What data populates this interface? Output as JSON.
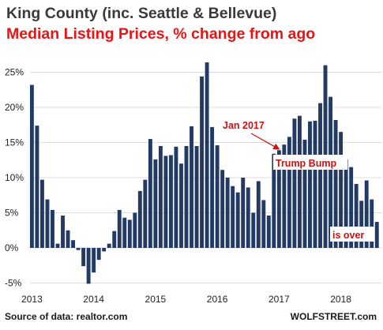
{
  "header": {
    "title": "King County (inc. Seattle & Bellevue)",
    "subtitle": "Median Listing Prices, % change from ago"
  },
  "footer": {
    "source": "Source of data: realtor.com",
    "brand": "WOLFSTREET.com"
  },
  "colors": {
    "bar": "#233a66",
    "grid": "#dcdcdc",
    "annotation": "#cc1111",
    "subtitle": "#ee1111"
  },
  "chart_data": {
    "type": "bar",
    "title": "",
    "xlabel": "",
    "ylabel": "",
    "ylim": [
      -6,
      28
    ],
    "y_ticks": [
      "-5%",
      "0%",
      "5%",
      "10%",
      "15%",
      "20%",
      "25%"
    ],
    "x_ticks": [
      "2013",
      "2014",
      "2015",
      "2016",
      "2017",
      "2018"
    ],
    "grid": true,
    "unit": "%",
    "start_month": "2013-01",
    "values": [
      23.2,
      17.4,
      9.7,
      6.9,
      5.4,
      0.6,
      4.6,
      2.5,
      1.1,
      -0.3,
      -2.6,
      -5.1,
      -3.5,
      -1.7,
      -0.5,
      0.6,
      2.4,
      5.4,
      4.3,
      4.0,
      5.0,
      8.1,
      9.7,
      15.5,
      12.6,
      14.5,
      13.1,
      13.2,
      14.4,
      12.0,
      14.5,
      17.3,
      14.5,
      24.4,
      26.4,
      17.2,
      14.6,
      11.1,
      10.0,
      8.8,
      7.9,
      10.0,
      8.6,
      5.0,
      9.5,
      6.8,
      4.6,
      13.4,
      13.9,
      14.7,
      15.8,
      18.4,
      18.8,
      15.4,
      18.0,
      18.1,
      20.6,
      26.0,
      21.5,
      18.2,
      16.5,
      12.6,
      11.5,
      9.1,
      6.7,
      9.6,
      6.9,
      3.7
    ],
    "annotations": [
      {
        "text": "Jan 2017",
        "month": "2017-01"
      },
      {
        "text": "Trump Bump",
        "month": "2017-01"
      },
      {
        "text": "is over",
        "month": "2018-06"
      }
    ]
  }
}
